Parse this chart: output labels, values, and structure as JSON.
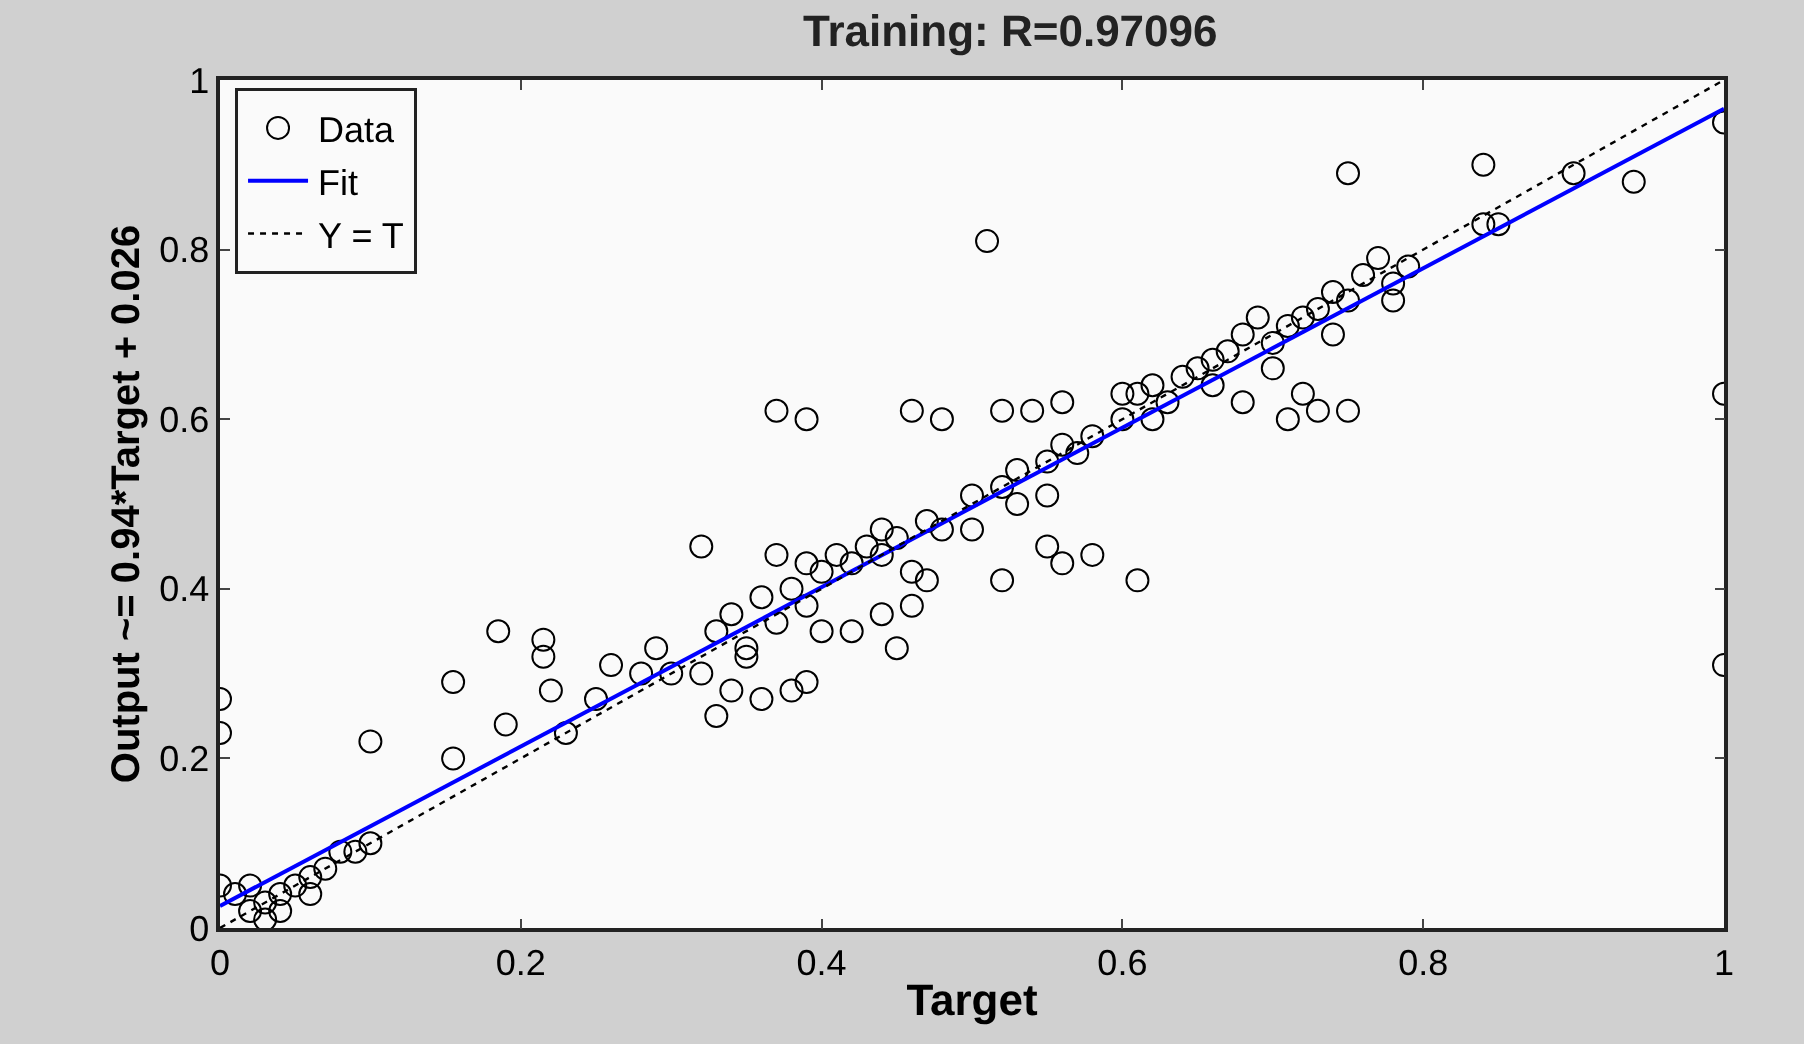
{
  "chart_data": {
    "type": "scatter",
    "title": "Training: R=0.97096",
    "xlabel": "Target",
    "ylabel": "Output ~= 0.94*Target + 0.026",
    "xlim": [
      0,
      1
    ],
    "ylim": [
      0,
      1
    ],
    "xticks": [
      0,
      0.2,
      0.4,
      0.6,
      0.8,
      1
    ],
    "yticks": [
      0,
      0.2,
      0.4,
      0.6,
      0.8,
      1
    ],
    "legend": "top left",
    "series": [
      {
        "name": "Data",
        "marker": "circle",
        "color": "#000000",
        "x": [
          0.0,
          0.0,
          0.1,
          0.155,
          0.155,
          0.185,
          0.19,
          0.215,
          0.215,
          0.22,
          0.23,
          0.25,
          0.26,
          0.32,
          0.37,
          0.39,
          0.46,
          0.48,
          0.51,
          0.52,
          0.54,
          0.56,
          0.55,
          0.56,
          0.61,
          0.52,
          0.58,
          0.75,
          0.84,
          0.9,
          0.94,
          1.0,
          1.0,
          1.0,
          0.72,
          0.73,
          0.75,
          0.71,
          0.78,
          0.85,
          0.84,
          0.77,
          0.79,
          0.76,
          0.0,
          0.01,
          0.02,
          0.03,
          0.03,
          0.04,
          0.05,
          0.06,
          0.07,
          0.08,
          0.09,
          0.1,
          0.04,
          0.02,
          0.06,
          0.3,
          0.32,
          0.33,
          0.34,
          0.35,
          0.36,
          0.37,
          0.38,
          0.39,
          0.4,
          0.41,
          0.42,
          0.43,
          0.44,
          0.45,
          0.47,
          0.48,
          0.5,
          0.52,
          0.53,
          0.55,
          0.56,
          0.58,
          0.6,
          0.61,
          0.62,
          0.63,
          0.64,
          0.65,
          0.66,
          0.67,
          0.68,
          0.7,
          0.71,
          0.72,
          0.73,
          0.74,
          0.75,
          0.34,
          0.33,
          0.36,
          0.38,
          0.39,
          0.35,
          0.42,
          0.44,
          0.46,
          0.47,
          0.45,
          0.4,
          0.28,
          0.29,
          0.37,
          0.39,
          0.44,
          0.46,
          0.5,
          0.53,
          0.55,
          0.57,
          0.6,
          0.62,
          0.66,
          0.68,
          0.7,
          0.74,
          0.78,
          0.69
        ],
        "values": [
          0.27,
          0.23,
          0.22,
          0.2,
          0.29,
          0.35,
          0.24,
          0.34,
          0.32,
          0.28,
          0.23,
          0.27,
          0.31,
          0.45,
          0.61,
          0.6,
          0.61,
          0.6,
          0.81,
          0.61,
          0.61,
          0.62,
          0.45,
          0.43,
          0.41,
          0.41,
          0.44,
          0.89,
          0.9,
          0.89,
          0.88,
          0.95,
          0.63,
          0.31,
          0.63,
          0.61,
          0.61,
          0.6,
          0.74,
          0.83,
          0.83,
          0.79,
          0.78,
          0.77,
          0.05,
          0.04,
          0.02,
          0.01,
          0.03,
          0.04,
          0.05,
          0.06,
          0.07,
          0.09,
          0.09,
          0.1,
          0.02,
          0.05,
          0.04,
          0.3,
          0.3,
          0.35,
          0.37,
          0.33,
          0.39,
          0.36,
          0.4,
          0.38,
          0.42,
          0.44,
          0.43,
          0.45,
          0.44,
          0.46,
          0.48,
          0.47,
          0.51,
          0.52,
          0.54,
          0.55,
          0.57,
          0.58,
          0.6,
          0.63,
          0.64,
          0.62,
          0.65,
          0.66,
          0.64,
          0.68,
          0.7,
          0.69,
          0.71,
          0.72,
          0.73,
          0.75,
          0.74,
          0.28,
          0.25,
          0.27,
          0.28,
          0.29,
          0.32,
          0.35,
          0.37,
          0.38,
          0.41,
          0.33,
          0.35,
          0.3,
          0.33,
          0.44,
          0.43,
          0.47,
          0.42,
          0.47,
          0.5,
          0.51,
          0.56,
          0.63,
          0.6,
          0.67,
          0.62,
          0.66,
          0.7,
          0.76,
          0.72
        ]
      },
      {
        "name": "Fit",
        "type": "line",
        "marker": "none",
        "line_style": "solid",
        "color": "#0000ff",
        "x": [
          0,
          1
        ],
        "values": [
          0.026,
          0.966
        ]
      },
      {
        "name": "Y = T",
        "type": "line",
        "marker": "none",
        "line_style": "dotted",
        "color": "#000000",
        "x": [
          0,
          1
        ],
        "values": [
          0,
          1
        ]
      }
    ]
  }
}
